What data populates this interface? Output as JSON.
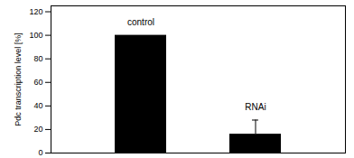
{
  "chart_data": {
    "type": "bar",
    "categories": [
      "control",
      "RNAi"
    ],
    "values": [
      100,
      16
    ],
    "errors": [
      0,
      12
    ],
    "color": "#000000",
    "y_label": "Pdc transcription level [%]",
    "ylim": [
      0,
      125
    ],
    "yticks": [
      0,
      20,
      40,
      60,
      80,
      100,
      120
    ],
    "tick_labels": "y",
    "grid": false
  }
}
